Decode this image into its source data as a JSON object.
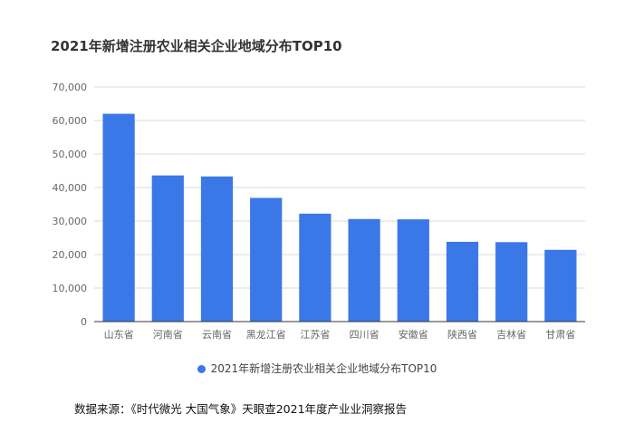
{
  "chart_data": {
    "type": "bar",
    "title": "2021年新增注册农业相关企业地域分布TOP10",
    "categories": [
      "山东省",
      "河南省",
      "云南省",
      "黑龙江省",
      "江苏省",
      "四川省",
      "安徽省",
      "陕西省",
      "吉林省",
      "甘肃省"
    ],
    "series": [
      {
        "name": "2021年新增注册农业相关企业地域分布TOP10",
        "values": [
          62000,
          43600,
          43300,
          36900,
          32200,
          30600,
          30500,
          23800,
          23700,
          21400
        ],
        "color": "#3b78e7"
      }
    ],
    "yticks": [
      "0",
      "10,000",
      "20,000",
      "30,000",
      "40,000",
      "50,000",
      "60,000",
      "70,000"
    ],
    "ylim": [
      0,
      70000
    ],
    "grid": true,
    "legend_position": "bottom"
  },
  "source": "数据来源：《时代微光 大国气象》天眼查2021年度产业业洞察报告"
}
